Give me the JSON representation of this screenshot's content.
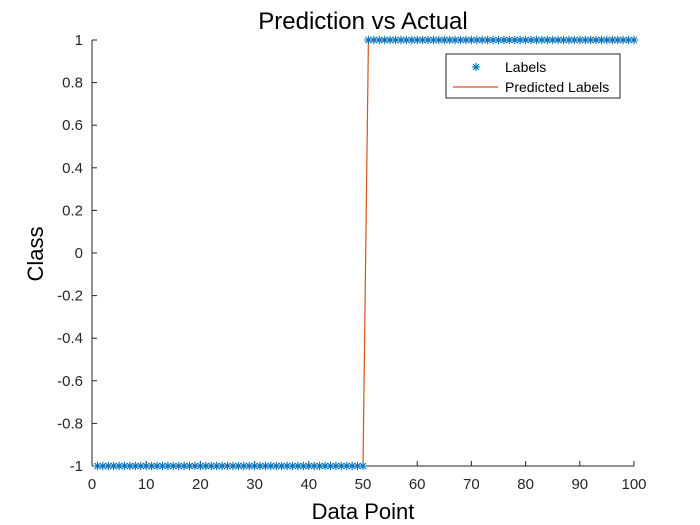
{
  "chart_data": {
    "type": "line",
    "title": "Prediction vs Actual",
    "xlabel": "Data Point",
    "ylabel": "Class",
    "xlim": [
      0,
      100
    ],
    "ylim": [
      -1,
      1
    ],
    "xticks": [
      0,
      10,
      20,
      30,
      40,
      50,
      60,
      70,
      80,
      90,
      100
    ],
    "yticks": [
      -1,
      -0.8,
      -0.6,
      -0.4,
      -0.2,
      0,
      0.2,
      0.4,
      0.6,
      0.8,
      1
    ],
    "xtick_labels": [
      "0",
      "10",
      "20",
      "30",
      "40",
      "50",
      "60",
      "70",
      "80",
      "90",
      "100"
    ],
    "ytick_labels": [
      "-1",
      "-0.8",
      "-0.6",
      "-0.4",
      "-0.2",
      "0",
      "0.2",
      "0.4",
      "0.6",
      "0.8",
      "1"
    ],
    "grid": false,
    "legend_position": "top-right",
    "series": [
      {
        "name": "Labels",
        "style": "markers",
        "marker": "asterisk",
        "color": "#0072BD",
        "x": [
          1,
          2,
          3,
          4,
          5,
          6,
          7,
          8,
          9,
          10,
          11,
          12,
          13,
          14,
          15,
          16,
          17,
          18,
          19,
          20,
          21,
          22,
          23,
          24,
          25,
          26,
          27,
          28,
          29,
          30,
          31,
          32,
          33,
          34,
          35,
          36,
          37,
          38,
          39,
          40,
          41,
          42,
          43,
          44,
          45,
          46,
          47,
          48,
          49,
          50,
          51,
          52,
          53,
          54,
          55,
          56,
          57,
          58,
          59,
          60,
          61,
          62,
          63,
          64,
          65,
          66,
          67,
          68,
          69,
          70,
          71,
          72,
          73,
          74,
          75,
          76,
          77,
          78,
          79,
          80,
          81,
          82,
          83,
          84,
          85,
          86,
          87,
          88,
          89,
          90,
          91,
          92,
          93,
          94,
          95,
          96,
          97,
          98,
          99,
          100
        ],
        "y": [
          -1,
          -1,
          -1,
          -1,
          -1,
          -1,
          -1,
          -1,
          -1,
          -1,
          -1,
          -1,
          -1,
          -1,
          -1,
          -1,
          -1,
          -1,
          -1,
          -1,
          -1,
          -1,
          -1,
          -1,
          -1,
          -1,
          -1,
          -1,
          -1,
          -1,
          -1,
          -1,
          -1,
          -1,
          -1,
          -1,
          -1,
          -1,
          -1,
          -1,
          -1,
          -1,
          -1,
          -1,
          -1,
          -1,
          -1,
          -1,
          -1,
          -1,
          1,
          1,
          1,
          1,
          1,
          1,
          1,
          1,
          1,
          1,
          1,
          1,
          1,
          1,
          1,
          1,
          1,
          1,
          1,
          1,
          1,
          1,
          1,
          1,
          1,
          1,
          1,
          1,
          1,
          1,
          1,
          1,
          1,
          1,
          1,
          1,
          1,
          1,
          1,
          1,
          1,
          1,
          1,
          1,
          1,
          1,
          1,
          1,
          1,
          1
        ]
      },
      {
        "name": "Predicted Labels",
        "style": "line",
        "color": "#D95319",
        "x": [
          1,
          2,
          3,
          4,
          5,
          6,
          7,
          8,
          9,
          10,
          11,
          12,
          13,
          14,
          15,
          16,
          17,
          18,
          19,
          20,
          21,
          22,
          23,
          24,
          25,
          26,
          27,
          28,
          29,
          30,
          31,
          32,
          33,
          34,
          35,
          36,
          37,
          38,
          39,
          40,
          41,
          42,
          43,
          44,
          45,
          46,
          47,
          48,
          49,
          50,
          51,
          52,
          53,
          54,
          55,
          56,
          57,
          58,
          59,
          60,
          61,
          62,
          63,
          64,
          65,
          66,
          67,
          68,
          69,
          70,
          71,
          72,
          73,
          74,
          75,
          76,
          77,
          78,
          79,
          80,
          81,
          82,
          83,
          84,
          85,
          86,
          87,
          88,
          89,
          90,
          91,
          92,
          93,
          94,
          95,
          96,
          97,
          98,
          99,
          100
        ],
        "y": [
          -1,
          -1,
          -1,
          -1,
          -1,
          -1,
          -1,
          -1,
          -1,
          -1,
          -1,
          -1,
          -1,
          -1,
          -1,
          -1,
          -1,
          -1,
          -1,
          -1,
          -1,
          -1,
          -1,
          -1,
          -1,
          -1,
          -1,
          -1,
          -1,
          -1,
          -1,
          -1,
          -1,
          -1,
          -1,
          -1,
          -1,
          -1,
          -1,
          -1,
          -1,
          -1,
          -1,
          -1,
          -1,
          -1,
          -1,
          -1,
          -1,
          -1,
          1,
          1,
          1,
          1,
          1,
          1,
          1,
          1,
          1,
          1,
          1,
          1,
          1,
          1,
          1,
          1,
          1,
          1,
          1,
          1,
          1,
          1,
          1,
          1,
          1,
          1,
          1,
          1,
          1,
          1,
          1,
          1,
          1,
          1,
          1,
          1,
          1,
          1,
          1,
          1,
          1,
          1,
          1,
          1,
          1,
          1,
          1,
          1,
          1,
          1
        ]
      }
    ]
  }
}
